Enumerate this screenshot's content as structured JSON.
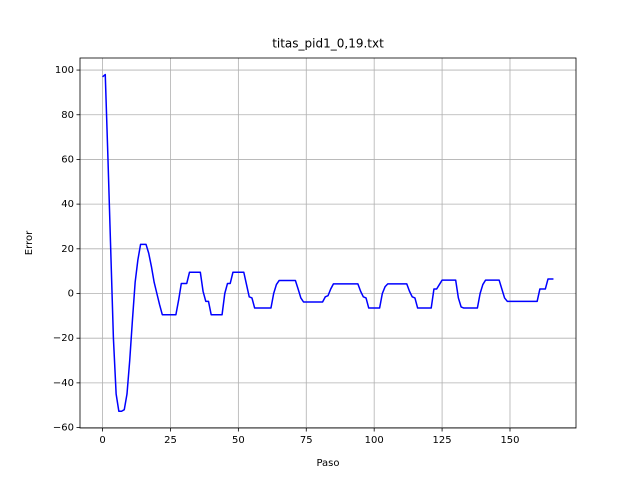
{
  "chart_data": {
    "type": "line",
    "title": "titas_pid1_0,19.txt",
    "xlabel": "Paso",
    "ylabel": "Error",
    "color": "#0000ff",
    "grid": true,
    "xlim": [
      -8.3,
      174.3
    ],
    "ylim": [
      -60.2,
      105.4
    ],
    "xticks": [
      0,
      25,
      50,
      75,
      100,
      125,
      150
    ],
    "yticks": [
      {
        "value": -60,
        "label": "−60"
      },
      {
        "value": -40,
        "label": "−40"
      },
      {
        "value": -20,
        "label": "−20"
      },
      0,
      20,
      40,
      60,
      80,
      100
    ],
    "x": [
      0,
      1,
      2,
      3,
      4,
      5,
      6,
      7,
      8,
      9,
      10,
      11,
      12,
      13,
      14,
      15,
      16,
      17,
      18,
      19,
      20,
      21,
      22,
      23,
      24,
      25,
      26,
      27,
      28,
      29,
      30,
      31,
      32,
      33,
      34,
      35,
      36,
      37,
      38,
      39,
      40,
      41,
      42,
      43,
      44,
      45,
      46,
      47,
      48,
      49,
      50,
      51,
      52,
      53,
      54,
      55,
      56,
      57,
      58,
      59,
      60,
      61,
      62,
      63,
      64,
      65,
      66,
      67,
      68,
      69,
      70,
      71,
      72,
      73,
      74,
      75,
      76,
      77,
      78,
      79,
      80,
      81,
      82,
      83,
      84,
      85,
      86,
      87,
      88,
      89,
      90,
      91,
      92,
      93,
      94,
      95,
      96,
      97,
      98,
      99,
      100,
      101,
      102,
      103,
      104,
      105,
      106,
      107,
      108,
      109,
      110,
      111,
      112,
      113,
      114,
      115,
      116,
      117,
      118,
      119,
      120,
      121,
      122,
      123,
      124,
      125,
      126,
      127,
      128,
      129,
      130,
      131,
      132,
      133,
      134,
      135,
      136,
      137,
      138,
      139,
      140,
      141,
      142,
      143,
      144,
      145,
      146,
      147,
      148,
      149,
      150,
      151,
      152,
      153,
      154,
      155,
      156,
      157,
      158,
      159,
      160,
      161,
      162,
      163,
      164,
      165,
      166
    ],
    "values": [
      97,
      98,
      60,
      20,
      -20,
      -45,
      -52.7,
      -52.7,
      -52,
      -45,
      -30,
      -12,
      5,
      15,
      22,
      22,
      22,
      18,
      12,
      5,
      0,
      -5,
      -9.5,
      -9.5,
      -9.5,
      -9.5,
      -9.5,
      -9.5,
      -3,
      4.5,
      4.5,
      4.5,
      9.5,
      9.5,
      9.5,
      9.5,
      9.5,
      1,
      -3.5,
      -3.5,
      -9.5,
      -9.5,
      -9.5,
      -9.5,
      -9.5,
      0,
      4.5,
      4.5,
      9.5,
      9.5,
      9.5,
      9.5,
      9.5,
      4,
      -1.5,
      -2,
      -6.5,
      -6.5,
      -6.5,
      -6.5,
      -6.5,
      -6.5,
      -6.5,
      0,
      4,
      5.8,
      5.8,
      5.8,
      5.8,
      5.8,
      5.8,
      5.8,
      2,
      -2,
      -3.8,
      -3.8,
      -3.8,
      -3.8,
      -3.8,
      -3.8,
      -3.8,
      -3.8,
      -1.5,
      -1,
      2,
      4.3,
      4.3,
      4.3,
      4.3,
      4.3,
      4.3,
      4.3,
      4.3,
      4.3,
      4.3,
      1,
      -1.5,
      -2,
      -6.5,
      -6.5,
      -6.5,
      -6.5,
      -6.5,
      0,
      3,
      4.3,
      4.3,
      4.3,
      4.3,
      4.3,
      4.3,
      4.3,
      4.3,
      1,
      -1.5,
      -2,
      -6.5,
      -6.5,
      -6.5,
      -6.5,
      -6.5,
      -6.5,
      2,
      2,
      4,
      6,
      6,
      6,
      6,
      6,
      6,
      -2,
      -6,
      -6.5,
      -6.5,
      -6.5,
      -6.5,
      -6.5,
      -6.5,
      0,
      4,
      6,
      6,
      6,
      6,
      6,
      6,
      2,
      -2,
      -3.5,
      -3.5,
      -3.5,
      -3.5,
      -3.5,
      -3.5,
      -3.5,
      -3.5,
      -3.5,
      -3.5,
      -3.5,
      -3.5,
      2,
      2,
      2,
      6.5,
      6.5,
      6.5
    ]
  }
}
